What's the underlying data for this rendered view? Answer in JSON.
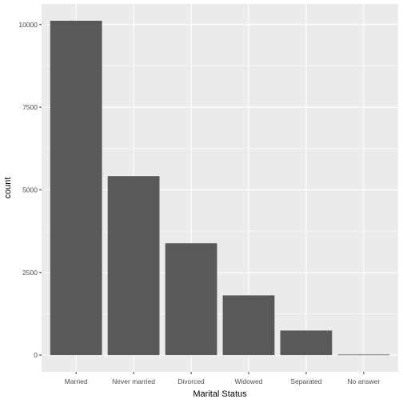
{
  "chart_data": {
    "type": "bar",
    "title": "",
    "xlabel": "Marital Status",
    "ylabel": "count",
    "categories": [
      "Married",
      "Never married",
      "Divorced",
      "Widowed",
      "Separated",
      "No answer"
    ],
    "values": [
      10117,
      5416,
      3383,
      1807,
      743,
      17
    ],
    "ylim": [
      -506,
      10623
    ],
    "yticks": [
      0,
      2500,
      5000,
      7500,
      10000
    ],
    "ytick_labels": [
      "0",
      "2500",
      "5000",
      "7500",
      "10000"
    ],
    "grid": true,
    "legend": "none",
    "colors": {
      "bar": "#595959",
      "panel": "#ebebeb",
      "grid_major": "#ffffff",
      "tick_label": "#4d4d4d"
    }
  }
}
